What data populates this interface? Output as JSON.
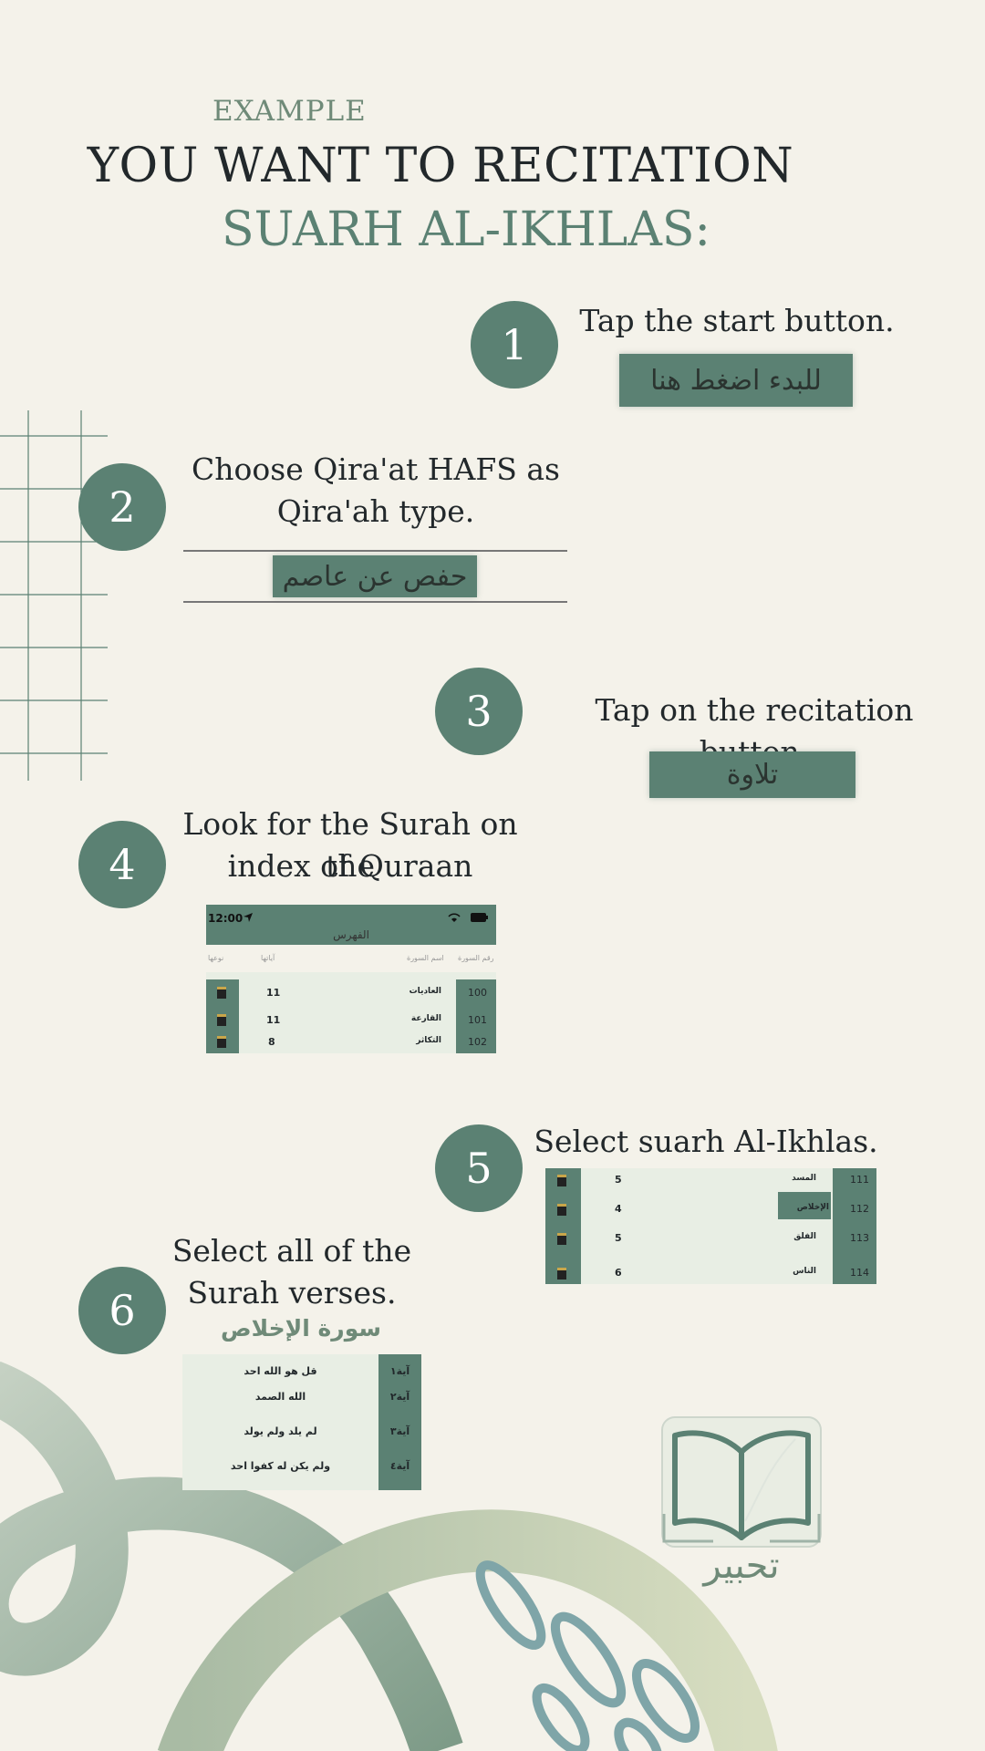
{
  "header": {
    "eyebrow": "EXAMPLE",
    "title_line1": "YOU WANT TO RECITATION",
    "title_line2": "SUARH AL-IKHLAS:"
  },
  "steps": [
    {
      "number": "1",
      "text": "Tap the start button.",
      "button_label": "للبدء اضغط هنا"
    },
    {
      "number": "2",
      "text_line1": "Choose Qira'at HAFS as",
      "text_line2": "Qira'ah type.",
      "button_label": "حفص عن عاصم"
    },
    {
      "number": "3",
      "text": "Tap on the recitation button.",
      "button_label": "تلاوة"
    },
    {
      "number": "4",
      "text_line1": "Look for the Surah on the",
      "text_line2": "index of Quraan"
    },
    {
      "number": "5",
      "text": "Select suarh Al-Ikhlas."
    },
    {
      "number": "6",
      "text_line1": "Select all of the",
      "text_line2": "Surah verses.",
      "surah_title": "سورة الإخلاص"
    }
  ],
  "index_screen": {
    "time": "12:00",
    "title": "الفهرس",
    "columns": [
      "نوعها",
      "آياتها",
      "اسم السورة",
      "رقم السورة"
    ],
    "rows": [
      {
        "verses": "11",
        "name": "العاديات",
        "number": "100"
      },
      {
        "verses": "11",
        "name": "القارعة",
        "number": "101"
      },
      {
        "verses": "8",
        "name": "التكاثر",
        "number": "102"
      }
    ]
  },
  "select_screen": {
    "rows": [
      {
        "verses": "5",
        "name": "المسد",
        "number": "111"
      },
      {
        "verses": "4",
        "name": "الإخلاص",
        "number": "112"
      },
      {
        "verses": "5",
        "name": "الفلق",
        "number": "113"
      },
      {
        "verses": "6",
        "name": "الناس",
        "number": "114"
      }
    ]
  },
  "verses_screen": {
    "rows": [
      {
        "label": "آية١",
        "text": "قل هو الله احد"
      },
      {
        "label": "آية٢",
        "text": "الله الصمد"
      },
      {
        "label": "آية٣",
        "text": "لم يلد ولم يولد"
      },
      {
        "label": "آية٤",
        "text": "ولم يكن له كفوا احد"
      }
    ]
  },
  "logo": {
    "text": "تحبير"
  },
  "colors": {
    "accent": "#5b8173",
    "background": "#f4f2ea",
    "text": "#22282b",
    "screen_bg": "#e8eee4"
  }
}
